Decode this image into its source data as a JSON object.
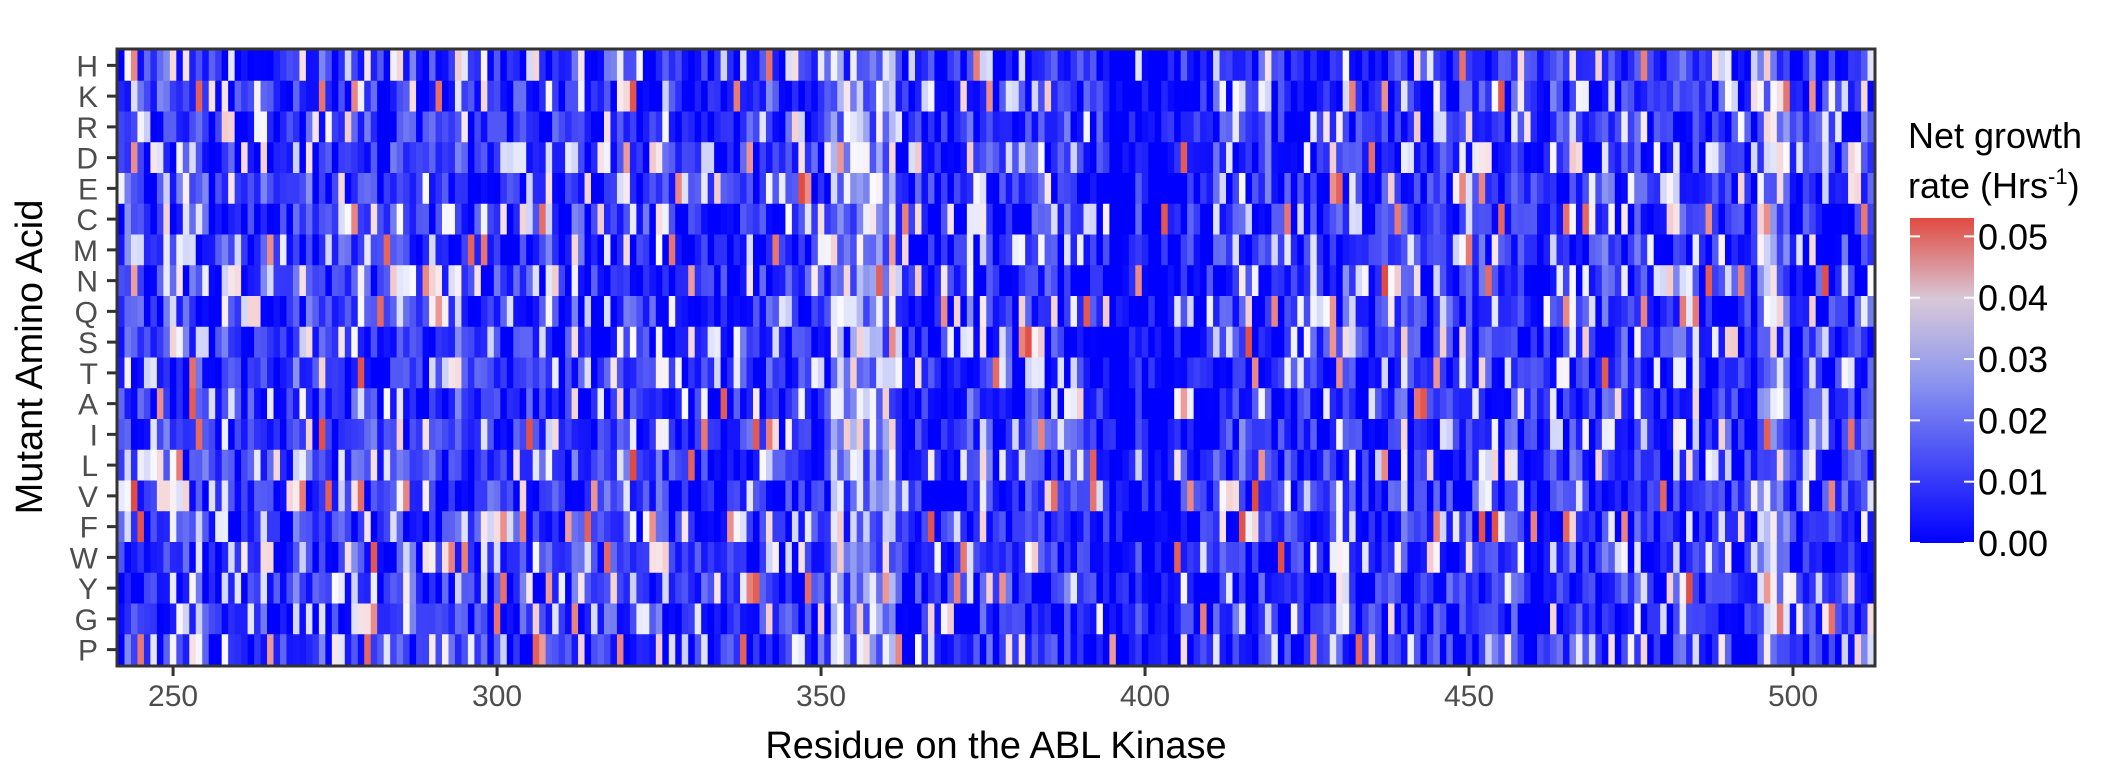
{
  "chart_data": {
    "type": "heatmap",
    "title": "",
    "xlabel": "Residue on the ABL Kinase",
    "ylabel": "Mutant Amino Acid",
    "x_range": [
      242,
      512
    ],
    "xlim": [
      242,
      512
    ],
    "x_ticks": [
      250,
      300,
      350,
      400,
      450,
      500
    ],
    "y_categories": [
      "H",
      "K",
      "R",
      "D",
      "E",
      "C",
      "M",
      "N",
      "Q",
      "S",
      "T",
      "A",
      "I",
      "L",
      "V",
      "F",
      "W",
      "Y",
      "G",
      "P"
    ],
    "color_scale": {
      "title_line1": "Net growth",
      "title_line2_main": "rate (Hrs",
      "title_line2_sup": "-1",
      "title_line2_end": ")",
      "min": 0.0,
      "max": 0.053,
      "ticks": [
        "0.00",
        "0.01",
        "0.02",
        "0.03",
        "0.04",
        "0.05"
      ],
      "tick_values": [
        0.0,
        0.01,
        0.02,
        0.03,
        0.04,
        0.05
      ],
      "colors": [
        "#0000ff",
        "#8c96ee",
        "#ffffff",
        "#e04a40"
      ]
    },
    "value_note": "Per-cell net growth rates for residues 242-512 across 20 substitutions; values range 0.00-0.053 h^-1. Individual cell values are not printed in the figure; the rendered pattern reproduces the visible structure: mostly near-zero (blue) with scattered high-growth cells (white/red), a high-growth band around residues 352-361 and near 495-499, and a low-growth block around 395-410."
  }
}
